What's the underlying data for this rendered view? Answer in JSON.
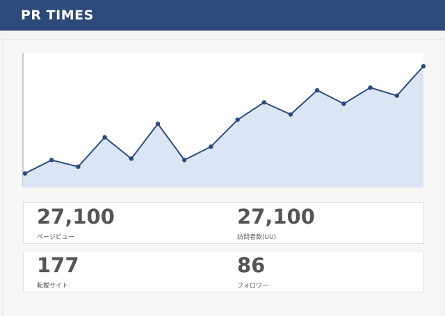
{
  "header": {
    "logo": "PR TIMES"
  },
  "chart_data": {
    "type": "area",
    "categories": [
      null,
      null,
      null,
      null,
      null,
      null,
      null,
      null,
      null,
      null,
      null,
      null,
      null,
      null,
      null,
      null
    ],
    "values": [
      10,
      20,
      15,
      37,
      21,
      47,
      20,
      30,
      50,
      63,
      54,
      72,
      62,
      74,
      68,
      90
    ],
    "ylim": [
      0,
      100
    ],
    "color": "#2d4a7b",
    "fill": "#dbe6f5"
  },
  "stats": [
    {
      "value": "27,100",
      "label": "ページビュー"
    },
    {
      "value": "27,100",
      "label": "訪問者数(UU)"
    },
    {
      "value": "177",
      "label": "転載サイト"
    },
    {
      "value": "86",
      "label": "フォロワー"
    }
  ]
}
